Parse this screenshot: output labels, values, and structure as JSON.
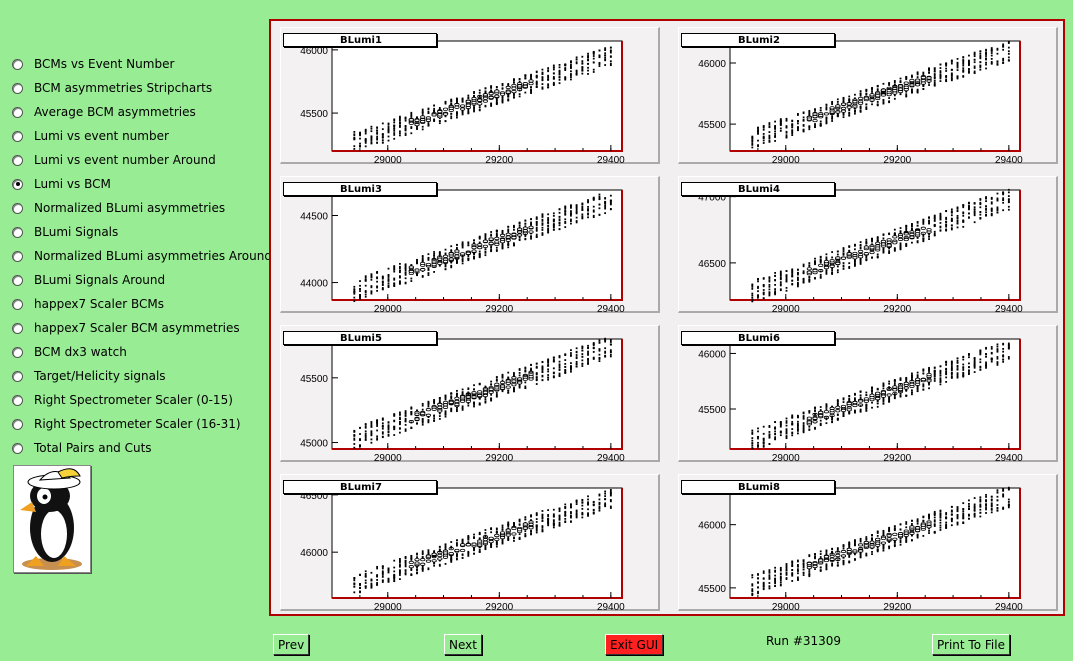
{
  "menu": {
    "items": [
      {
        "label": "BCMs vs Event Number",
        "checked": false
      },
      {
        "label": "BCM asymmetries Stripcharts",
        "checked": false
      },
      {
        "label": "Average BCM asymmetries",
        "checked": false
      },
      {
        "label": "Lumi vs event number",
        "checked": false
      },
      {
        "label": "Lumi vs event number Around",
        "checked": false
      },
      {
        "label": "Lumi vs BCM",
        "checked": true
      },
      {
        "label": "Normalized BLumi asymmetries",
        "checked": false
      },
      {
        "label": "BLumi Signals",
        "checked": false
      },
      {
        "label": "Normalized BLumi asymmetries Around",
        "checked": false
      },
      {
        "label": "BLumi Signals Around",
        "checked": false
      },
      {
        "label": "happex7 Scaler BCMs",
        "checked": false
      },
      {
        "label": "happex7 Scaler BCM asymmetries",
        "checked": false
      },
      {
        "label": "BCM dx3 watch",
        "checked": false
      },
      {
        "label": "Target/Helicity signals",
        "checked": false
      },
      {
        "label": "Right Spectrometer Scaler (0-15)",
        "checked": false
      },
      {
        "label": "Right Spectrometer Scaler (16-31)",
        "checked": false
      },
      {
        "label": "Total Pairs and Cuts",
        "checked": false
      }
    ]
  },
  "buttons": {
    "prev": "Prev",
    "next": "Next",
    "exit": "Exit GUI",
    "print": "Print To File"
  },
  "run_label": "Run #31309",
  "logo_icon": "penguin-logo-icon",
  "colors": {
    "background": "#98ec93",
    "frame": "#b00000",
    "exit": "#ff2020"
  },
  "chart_data": [
    {
      "type": "scatter",
      "title": "BLumi1",
      "xticks": [
        "29000",
        "29200",
        "29400"
      ],
      "yticks": [
        "45500",
        "46000"
      ],
      "xlim": [
        28900,
        29420
      ],
      "ylim": [
        45200,
        46070
      ],
      "x": [
        28940,
        29400
      ],
      "y": [
        45270,
        45950
      ]
    },
    {
      "type": "scatter",
      "title": "BLumi2",
      "xticks": [
        "29000",
        "29200",
        "29400"
      ],
      "yticks": [
        "45500",
        "46000"
      ],
      "xlim": [
        28900,
        29420
      ],
      "ylim": [
        45280,
        46180
      ],
      "x": [
        28940,
        29400
      ],
      "y": [
        45380,
        46100
      ]
    },
    {
      "type": "scatter",
      "title": "BLumi3",
      "xticks": [
        "29000",
        "29200",
        "29400"
      ],
      "yticks": [
        "44000",
        "44500"
      ],
      "xlim": [
        28900,
        29420
      ],
      "ylim": [
        43870,
        44690
      ],
      "x": [
        28940,
        29400
      ],
      "y": [
        43940,
        44610
      ]
    },
    {
      "type": "scatter",
      "title": "BLumi4",
      "xticks": [
        "29000",
        "29200",
        "29400"
      ],
      "yticks": [
        "46500",
        "47000"
      ],
      "xlim": [
        28900,
        29420
      ],
      "ylim": [
        46220,
        47050
      ],
      "x": [
        28940,
        29400
      ],
      "y": [
        46280,
        46980
      ]
    },
    {
      "type": "scatter",
      "title": "BLumi5",
      "xticks": [
        "29000",
        "29200",
        "29400"
      ],
      "yticks": [
        "45000",
        "45500"
      ],
      "xlim": [
        28900,
        29420
      ],
      "ylim": [
        44950,
        45800
      ],
      "x": [
        28940,
        29400
      ],
      "y": [
        45030,
        45740
      ]
    },
    {
      "type": "scatter",
      "title": "BLumi6",
      "xticks": [
        "29000",
        "29200",
        "29400"
      ],
      "yticks": [
        "45500",
        "46000"
      ],
      "xlim": [
        28900,
        29420
      ],
      "ylim": [
        45140,
        46130
      ],
      "x": [
        28940,
        29400
      ],
      "y": [
        45220,
        46030
      ]
    },
    {
      "type": "scatter",
      "title": "BLumi7",
      "xticks": [
        "29000",
        "29200",
        "29400"
      ],
      "yticks": [
        "46000",
        "46500"
      ],
      "xlim": [
        28900,
        29420
      ],
      "ylim": [
        45600,
        46560
      ],
      "x": [
        28940,
        29400
      ],
      "y": [
        45720,
        46470
      ]
    },
    {
      "type": "scatter",
      "title": "BLumi8",
      "xticks": [
        "29000",
        "29200",
        "29400"
      ],
      "yticks": [
        "45500",
        "46000"
      ],
      "xlim": [
        28900,
        29420
      ],
      "ylim": [
        45420,
        46290
      ],
      "x": [
        28940,
        29400
      ],
      "y": [
        45520,
        46220
      ]
    }
  ]
}
